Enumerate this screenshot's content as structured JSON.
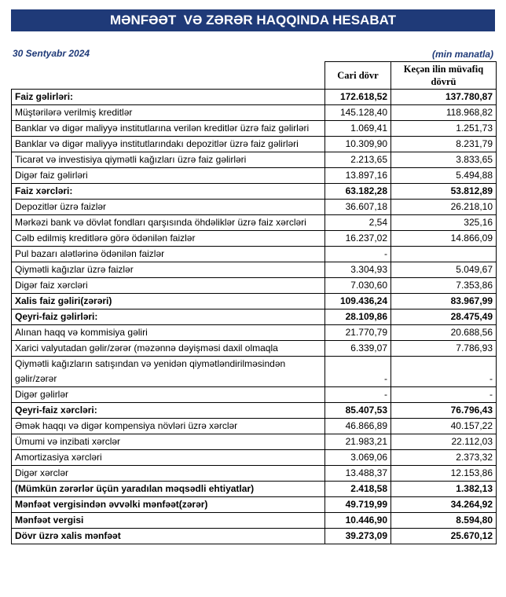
{
  "header": {
    "title": "MƏNFƏƏT  VƏ ZƏRƏR HAQQINDA HESABAT",
    "date": "30 Sentyabr 2024",
    "unit": "(min manatla)"
  },
  "table": {
    "columns": [
      "Cari dövr",
      "Keçən ilin müvafiq dövrü"
    ],
    "rows": [
      {
        "label": "Faiz gəlirləri:",
        "current": "172.618,52",
        "previous": "137.780,87",
        "bold": true
      },
      {
        "label": "Müştərilərə verilmiş kreditlər",
        "current": "145.128,40",
        "previous": "118.968,82",
        "bold": false
      },
      {
        "label": "Banklar və digər maliyyə institutlarına verilən kreditlər üzrə faiz gəlirləri",
        "current": "1.069,41",
        "previous": "1.251,73",
        "bold": false
      },
      {
        "label": "Banklar və digər maliyyə institutlarındakı depozitlər üzrə faiz gəlirləri",
        "current": "10.309,90",
        "previous": "8.231,79",
        "bold": false
      },
      {
        "label": "Ticarət və investisiya qiymətli kağızları üzrə faiz gəlirləri",
        "current": "2.213,65",
        "previous": "3.833,65",
        "bold": false
      },
      {
        "label": "Digər faiz gəlirləri",
        "current": "13.897,16",
        "previous": "5.494,88",
        "bold": false
      },
      {
        "label": "Faiz xərcləri:",
        "current": "63.182,28",
        "previous": "53.812,89",
        "bold": true
      },
      {
        "label": "Depozitlər üzrə faizlər",
        "current": "36.607,18",
        "previous": "26.218,10",
        "bold": false
      },
      {
        "label": "Mərkəzi bank və dövlət fondları qarşısında öhdəliklər üzrə faiz xərcləri",
        "current": "2,54",
        "previous": "325,16",
        "bold": false
      },
      {
        "label": "Cəlb edilmiş kreditlərə görə ödənilən faizlər",
        "current": "16.237,02",
        "previous": "14.866,09",
        "bold": false
      },
      {
        "label": "Pul bazarı alətlərinə ödənilən faizlər",
        "current": "-",
        "previous": null,
        "bold": false
      },
      {
        "label": "Qiymətli kağızlar üzrə faizlər",
        "current": "3.304,93",
        "previous": "5.049,67",
        "bold": false
      },
      {
        "label": "Digər faiz xərcləri",
        "current": "7.030,60",
        "previous": "7.353,86",
        "bold": false
      },
      {
        "label": "Xalis faiz gəliri(zərəri)",
        "current": "109.436,24",
        "previous": "83.967,99",
        "bold": true
      },
      {
        "label": "Qeyri-faiz gəlirləri:",
        "current": "28.109,86",
        "previous": "28.475,49",
        "bold": true
      },
      {
        "label": "Alınan haqq və kommisiya gəliri",
        "current": "21.770,79",
        "previous": "20.688,56",
        "bold": false
      },
      {
        "label": "Xarici valyutadan gəlir/zərər (məzənnə dəyişməsi daxil olmaqla",
        "current": "6.339,07",
        "previous": "7.786,93",
        "bold": false
      },
      {
        "label": "Qiymətli kağızların satışından və yenidən qiymətləndirilməsindən gəlir/zərər",
        "current": "-",
        "previous": "-",
        "bold": false
      },
      {
        "label": "Digər gəlirlər",
        "current": "-",
        "previous": "-",
        "bold": false
      },
      {
        "label": "Qeyri-faiz xərcləri:",
        "current": "85.407,53",
        "previous": "76.796,43",
        "bold": true
      },
      {
        "label": "Əmək haqqı və digər kompensiya növləri üzrə xərclər",
        "current": "46.866,89",
        "previous": "40.157,22",
        "bold": false
      },
      {
        "label": "Ümumi və inzibati xərclər",
        "current": "21.983,21",
        "previous": "22.112,03",
        "bold": false
      },
      {
        "label": "Amortizasiya xərcləri",
        "current": "3.069,06",
        "previous": "2.373,32",
        "bold": false
      },
      {
        "label": "Digər xərclər",
        "current": "13.488,37",
        "previous": "12.153,86",
        "bold": false
      },
      {
        "label": "(Mümkün zərərlər üçün yaradılan məqsədli ehtiyatlar)",
        "current": "2.418,58",
        "previous": "1.382,13",
        "bold": true
      },
      {
        "label": "Mənfəət vergisindən əvvəlki mənfəət(zərər)",
        "current": "49.719,99",
        "previous": "34.264,92",
        "bold": true
      },
      {
        "label": "Mənfəət vergisi",
        "current": "10.446,90",
        "previous": "8.594,80",
        "bold": true
      },
      {
        "label": "Dövr üzrə xalis mənfəət",
        "current": "39.273,09",
        "previous": "25.670,12",
        "bold": true
      }
    ]
  }
}
